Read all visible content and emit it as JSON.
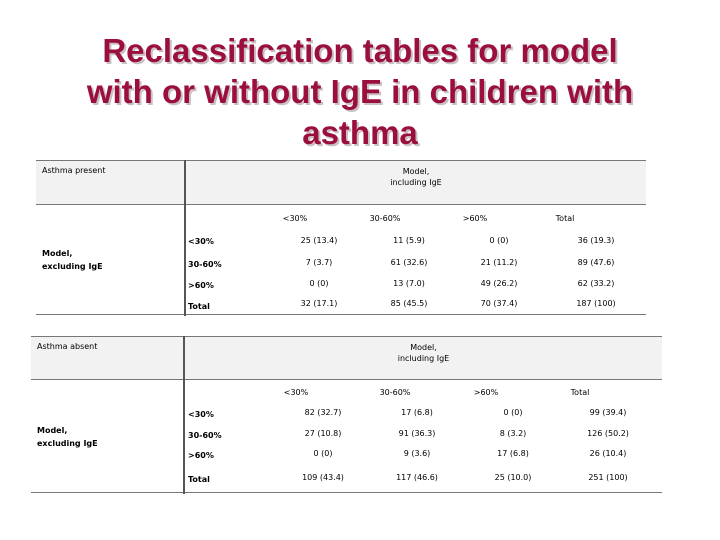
{
  "title_lines": [
    "Reclassification tables for model",
    "with or without IgE in children with",
    "asthma"
  ],
  "tables": [
    {
      "label": "Asthma present",
      "model_header": [
        "Model,",
        "including IgE"
      ],
      "row_header": [
        "Model,",
        "excluding IgE"
      ],
      "col_headers": [
        "<30%",
        "30-60%",
        ">60%",
        "Total"
      ],
      "rows": [
        {
          "label": "<30%",
          "cells": [
            "25 (13.4)",
            "11 (5.9)",
            "0 (0)",
            "36 (19.3)"
          ]
        },
        {
          "label": "30-60%",
          "cells": [
            "7 (3.7)",
            "61 (32.6)",
            "21 (11.2)",
            "89 (47.6)"
          ]
        },
        {
          "label": ">60%",
          "cells": [
            "0 (0)",
            "13 (7.0)",
            "49 (26.2)",
            "62 (33.2)"
          ]
        },
        {
          "label": "Total",
          "cells": [
            "32 (17.1)",
            "85 (45.5)",
            "70 (37.4)",
            "187 (100)"
          ]
        }
      ]
    },
    {
      "label": "Asthma absent",
      "model_header": [
        "Model,",
        "including IgE"
      ],
      "row_header": [
        "Model,",
        "excluding IgE"
      ],
      "col_headers": [
        "<30%",
        "30-60%",
        ">60%",
        "Total"
      ],
      "rows": [
        {
          "label": "<30%",
          "cells": [
            "82 (32.7)",
            "17 (6.8)",
            "0 (0)",
            "99 (39.4)"
          ]
        },
        {
          "label": "30-60%",
          "cells": [
            "27 (10.8)",
            "91 (36.3)",
            "8 (3.2)",
            "126 (50.2)"
          ]
        },
        {
          "label": ">60%",
          "cells": [
            "0 (0)",
            "9 (3.6)",
            "17 (6.8)",
            "26 (10.4)"
          ]
        },
        {
          "label": "Total",
          "cells": [
            "109 (43.4)",
            "117 (46.6)",
            "25 (10.0)",
            "251 (100)"
          ]
        }
      ]
    }
  ]
}
